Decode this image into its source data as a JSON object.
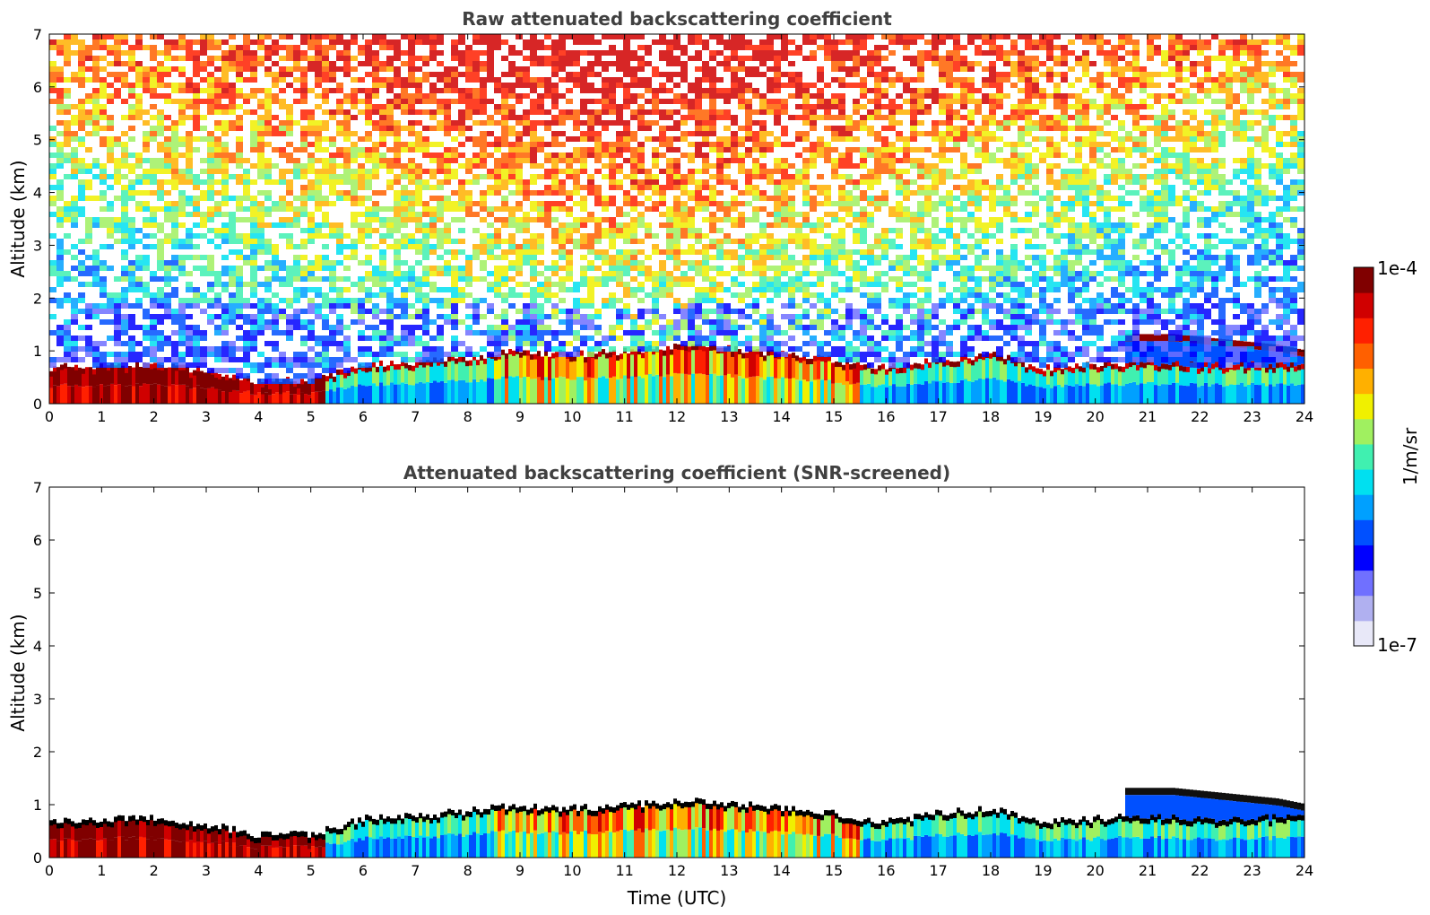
{
  "chart_data": [
    {
      "type": "heatmap",
      "title": "Raw attenuated backscattering coefficient",
      "ylabel": "Altitude (km)",
      "xlabel": "",
      "xlim": [
        0,
        24
      ],
      "ylim": [
        0,
        7
      ],
      "xticks": [
        "0",
        "1",
        "2",
        "3",
        "4",
        "5",
        "6",
        "7",
        "8",
        "9",
        "10",
        "11",
        "12",
        "13",
        "14",
        "15",
        "16",
        "17",
        "18",
        "19",
        "20",
        "21",
        "22",
        "23",
        "24"
      ],
      "yticks": [
        "0",
        "1",
        "2",
        "3",
        "4",
        "5",
        "6",
        "7"
      ],
      "noise_above_boundary_layer": true,
      "boundary_layer_top_km": [
        [
          0,
          0.6
        ],
        [
          1,
          0.65
        ],
        [
          2,
          0.65
        ],
        [
          3,
          0.55
        ],
        [
          4,
          0.35
        ],
        [
          5,
          0.35
        ],
        [
          6,
          0.65
        ],
        [
          7,
          0.7
        ],
        [
          8,
          0.8
        ],
        [
          9,
          0.9
        ],
        [
          10,
          0.85
        ],
        [
          11,
          0.9
        ],
        [
          12,
          1.0
        ],
        [
          13,
          0.95
        ],
        [
          14,
          0.85
        ],
        [
          15,
          0.75
        ],
        [
          16,
          0.6
        ],
        [
          17,
          0.75
        ],
        [
          18,
          0.85
        ],
        [
          19,
          0.6
        ],
        [
          20,
          0.65
        ],
        [
          21,
          0.7
        ],
        [
          22,
          0.65
        ],
        [
          23,
          0.65
        ],
        [
          24,
          0.7
        ]
      ],
      "cloud_layer": {
        "x_start": 20.6,
        "x_end": 24,
        "altitude_km": [
          [
            20.6,
            1.25
          ],
          [
            21.5,
            1.25
          ],
          [
            22.5,
            1.15
          ],
          [
            23.5,
            1.05
          ],
          [
            24,
            0.95
          ]
        ]
      }
    },
    {
      "type": "heatmap",
      "title": "Attenuated backscattering coefficient (SNR-screened)",
      "ylabel": "Altitude (km)",
      "xlabel": "Time (UTC)",
      "xlim": [
        0,
        24
      ],
      "ylim": [
        0,
        7
      ],
      "xticks": [
        "0",
        "1",
        "2",
        "3",
        "4",
        "5",
        "6",
        "7",
        "8",
        "9",
        "10",
        "11",
        "12",
        "13",
        "14",
        "15",
        "16",
        "17",
        "18",
        "19",
        "20",
        "21",
        "22",
        "23",
        "24"
      ],
      "yticks": [
        "0",
        "1",
        "2",
        "3",
        "4",
        "5",
        "6",
        "7"
      ],
      "noise_above_boundary_layer": false
    }
  ],
  "colorbar": {
    "max_label": "1e-4",
    "min_label": "1e-7",
    "unit_label": "1/m/sr",
    "colors": [
      "#e8e8f8",
      "#b0b0f0",
      "#7070ff",
      "#0000ff",
      "#0050ff",
      "#00a0ff",
      "#00e0f0",
      "#40f0b0",
      "#a0f060",
      "#f0f000",
      "#ffb000",
      "#ff6000",
      "#ff2000",
      "#d00000",
      "#800000"
    ]
  }
}
